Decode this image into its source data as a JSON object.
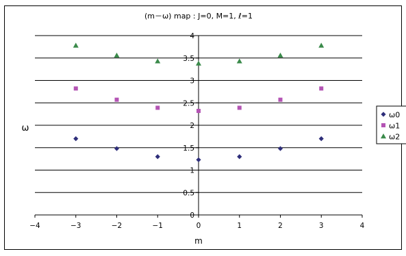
{
  "chart_data": {
    "type": "scatter",
    "title": "(m－ω) map : J=0, M=1, ℓ=1",
    "xlabel": "m",
    "ylabel": "ω",
    "xlim": [
      -4,
      4
    ],
    "ylim": [
      0,
      4
    ],
    "x_ticks": [
      "-4",
      "-3",
      "-2",
      "-1",
      "0",
      "1",
      "2",
      "3",
      "4"
    ],
    "y_ticks": [
      "0",
      "0.5",
      "1",
      "1.5",
      "2",
      "2.5",
      "3",
      "3.5",
      "4"
    ],
    "grid": "horizontal",
    "legend_position": "right",
    "series": [
      {
        "name": "ω0",
        "marker": "diamond",
        "color": "#2e2e7a",
        "points": [
          [
            -3,
            1.7
          ],
          [
            -2,
            1.48
          ],
          [
            -1,
            1.3
          ],
          [
            0,
            1.23
          ],
          [
            1,
            1.3
          ],
          [
            2,
            1.48
          ],
          [
            3,
            1.7
          ]
        ]
      },
      {
        "name": "ω1",
        "marker": "square",
        "color": "#b454b4",
        "points": [
          [
            -3,
            2.82
          ],
          [
            -2,
            2.57
          ],
          [
            -1,
            2.39
          ],
          [
            0,
            2.32
          ],
          [
            1,
            2.39
          ],
          [
            2,
            2.57
          ],
          [
            3,
            2.82
          ]
        ]
      },
      {
        "name": "ω2",
        "marker": "triangle",
        "color": "#3a8a4a",
        "points": [
          [
            -3,
            3.78
          ],
          [
            -2,
            3.56
          ],
          [
            -1,
            3.43
          ],
          [
            0,
            3.38
          ],
          [
            1,
            3.43
          ],
          [
            2,
            3.56
          ],
          [
            3,
            3.78
          ]
        ]
      }
    ]
  }
}
